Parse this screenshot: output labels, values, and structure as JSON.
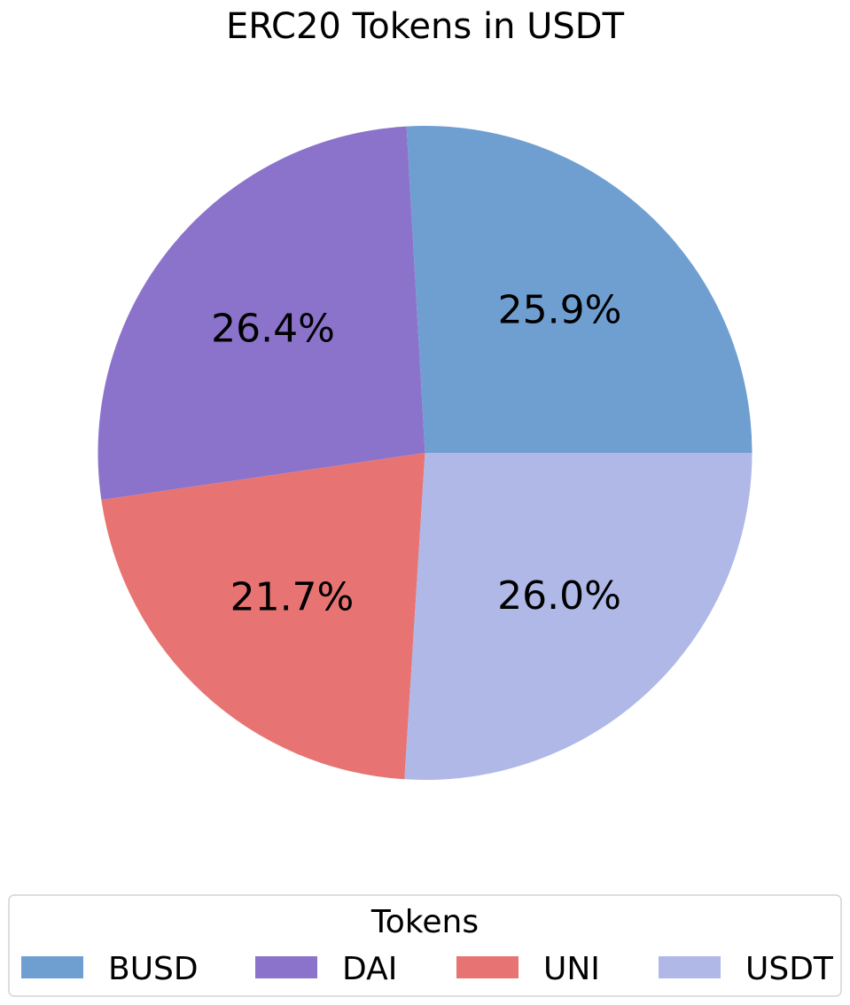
{
  "chart_data": {
    "type": "pie",
    "title": "ERC20 Tokens in USDT",
    "categories": [
      "BUSD",
      "DAI",
      "UNI",
      "USDT"
    ],
    "values": [
      25.9,
      26.4,
      21.7,
      26.0
    ],
    "value_labels": [
      "25.9%",
      "26.4%",
      "21.7%",
      "26.0%"
    ],
    "colors": [
      "#6f9fd1",
      "#8b73cb",
      "#e77472",
      "#afb8e7"
    ],
    "start_angle_deg": 0,
    "direction": "counterclockwise",
    "legend": {
      "title": "Tokens",
      "placement": "bottom",
      "labels": [
        "BUSD",
        "DAI",
        "UNI",
        "USDT"
      ]
    }
  }
}
